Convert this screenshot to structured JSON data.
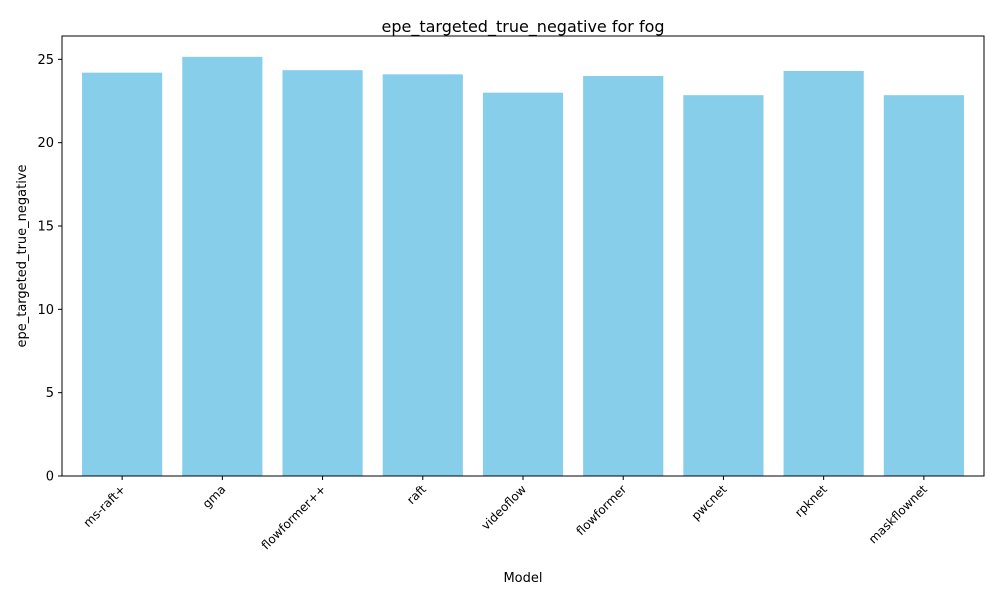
{
  "chart_data": {
    "type": "bar",
    "title": "epe_targeted_true_negative for fog",
    "xlabel": "Model",
    "ylabel": "epe_targeted_true_negative",
    "categories": [
      "ms-raft+",
      "gma",
      "flowformer++",
      "raft",
      "videoflow",
      "flowformer",
      "pwcnet",
      "rpknet",
      "maskflownet"
    ],
    "values": [
      24.2,
      25.15,
      24.35,
      24.1,
      23.0,
      24.0,
      22.85,
      24.3,
      22.85
    ],
    "ylim": [
      0,
      26.4
    ],
    "yticks": [
      0,
      5,
      10,
      15,
      20,
      25
    ],
    "grid": false,
    "legend": "none",
    "bar_color": "#87ceeb"
  }
}
